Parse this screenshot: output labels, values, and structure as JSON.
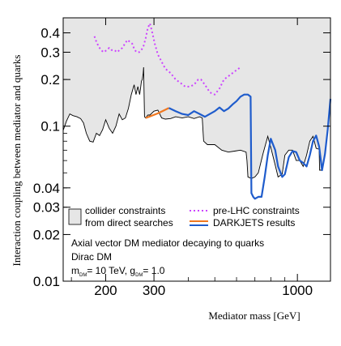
{
  "chart_data": {
    "type": "line",
    "xlabel": "Mediator mass [GeV]",
    "ylabel": "Interaction coupling between mediator and quarks",
    "xscale": "log",
    "yscale": "log",
    "xlim": [
      140,
      1320
    ],
    "ylim": [
      0.01,
      0.5
    ],
    "xticks": [
      {
        "value": 200,
        "label": "200"
      },
      {
        "value": 300,
        "label": "300"
      },
      {
        "value": 1000,
        "label": "1000"
      }
    ],
    "yticks": [
      {
        "value": 0.4,
        "label": "0.4"
      },
      {
        "value": 0.3,
        "label": "0.3"
      },
      {
        "value": 0.2,
        "label": "0.2"
      },
      {
        "value": 0.1,
        "label": "0.1"
      },
      {
        "value": 0.04,
        "label": "0.04"
      },
      {
        "value": 0.03,
        "label": "0.03"
      },
      {
        "value": 0.02,
        "label": "0.02"
      },
      {
        "value": 0.01,
        "label": "0.01"
      }
    ],
    "series": [
      {
        "name": "collider constraints from direct searches",
        "style": "filled-region",
        "color": "#000000",
        "fill": "#e6e6e6",
        "x": [
          140,
          144,
          148,
          152,
          157,
          162,
          166,
          170,
          175,
          180,
          185,
          190,
          195,
          200,
          206,
          212,
          218,
          224,
          230,
          236,
          242,
          248,
          254,
          258,
          262,
          266,
          268,
          270,
          272,
          274,
          275,
          277,
          280,
          285,
          290,
          300,
          310,
          320,
          330,
          345,
          360,
          380,
          400,
          420,
          440,
          450,
          455,
          470,
          500,
          530,
          560,
          590,
          620,
          650,
          655,
          660,
          680,
          700,
          720,
          750,
          780,
          800,
          830,
          850,
          880,
          900,
          930,
          960,
          990,
          1020,
          1050,
          1080,
          1110,
          1140,
          1170,
          1200,
          1205,
          1230,
          1260,
          1290,
          1320
        ],
        "y": [
          0.094,
          0.108,
          0.12,
          0.117,
          0.115,
          0.112,
          0.105,
          0.09,
          0.08,
          0.079,
          0.09,
          0.087,
          0.095,
          0.11,
          0.097,
          0.09,
          0.1,
          0.12,
          0.11,
          0.113,
          0.13,
          0.16,
          0.185,
          0.16,
          0.18,
          0.16,
          0.175,
          0.195,
          0.2,
          0.22,
          0.24,
          0.115,
          0.113,
          0.118,
          0.118,
          0.125,
          0.127,
          0.113,
          0.111,
          0.112,
          0.115,
          0.113,
          0.115,
          0.112,
          0.115,
          0.113,
          0.08,
          0.076,
          0.076,
          0.07,
          0.068,
          0.069,
          0.07,
          0.068,
          0.06,
          0.047,
          0.046,
          0.047,
          0.05,
          0.067,
          0.086,
          0.073,
          0.056,
          0.047,
          0.049,
          0.065,
          0.07,
          0.07,
          0.06,
          0.06,
          0.055,
          0.065,
          0.08,
          0.086,
          0.072,
          0.071,
          0.052,
          0.052,
          0.065,
          0.095,
          0.15
        ]
      },
      {
        "name": "pre-LHC constraints",
        "style": "dotted",
        "color": "#cc44ff",
        "x": [
          182,
          185,
          188,
          192,
          197,
          202,
          206,
          210,
          215,
          220,
          225,
          230,
          235,
          240,
          245,
          250,
          255,
          260,
          265,
          270,
          275,
          280,
          285,
          290,
          295,
          302,
          310,
          320,
          330,
          345,
          360,
          375,
          390,
          405,
          420,
          435,
          445,
          460,
          480,
          500,
          520,
          540,
          560,
          580,
          600,
          620
        ],
        "y": [
          0.38,
          0.35,
          0.33,
          0.31,
          0.3,
          0.31,
          0.32,
          0.31,
          0.31,
          0.3,
          0.31,
          0.32,
          0.34,
          0.36,
          0.35,
          0.34,
          0.31,
          0.3,
          0.3,
          0.31,
          0.33,
          0.37,
          0.43,
          0.46,
          0.41,
          0.34,
          0.29,
          0.26,
          0.235,
          0.22,
          0.2,
          0.19,
          0.18,
          0.18,
          0.185,
          0.2,
          0.2,
          0.185,
          0.165,
          0.16,
          0.175,
          0.2,
          0.21,
          0.22,
          0.23,
          0.24
        ]
      },
      {
        "name": "DARKJETS results",
        "style": "line",
        "color": "#f07820",
        "x": [
          280,
          295,
          310,
          325,
          340
        ],
        "y": [
          0.113,
          0.117,
          0.121,
          0.126,
          0.131
        ]
      },
      {
        "name": "DARKJETS results",
        "style": "line",
        "color": "#1f5ccc",
        "x": [
          340,
          360,
          380,
          400,
          420,
          440,
          460,
          480,
          500,
          520,
          540,
          560,
          580,
          600,
          620,
          640,
          660,
          675,
          680,
          690,
          700,
          720,
          740,
          760,
          780,
          800,
          830,
          850,
          880,
          900,
          930,
          960,
          990,
          1020,
          1050,
          1080,
          1110,
          1140,
          1170,
          1200,
          1205,
          1230,
          1260,
          1290,
          1320
        ],
        "y": [
          0.131,
          0.125,
          0.12,
          0.118,
          0.125,
          0.12,
          0.115,
          0.12,
          0.125,
          0.132,
          0.125,
          0.13,
          0.138,
          0.145,
          0.155,
          0.16,
          0.16,
          0.155,
          0.037,
          0.035,
          0.034,
          0.035,
          0.035,
          0.047,
          0.065,
          0.083,
          0.07,
          0.055,
          0.047,
          0.049,
          0.063,
          0.069,
          0.068,
          0.06,
          0.058,
          0.055,
          0.065,
          0.08,
          0.087,
          0.074,
          0.07,
          0.052,
          0.066,
          0.095,
          0.15
        ]
      }
    ],
    "legend": {
      "placement": "lower-left",
      "entries": [
        {
          "label_lines": [
            "collider constraints",
            "from direct searches"
          ],
          "marker": "box"
        },
        {
          "label_lines": [
            "pre-LHC constraints"
          ],
          "marker": "dotted-line"
        },
        {
          "label_lines": [
            "DARKJETS results"
          ],
          "marker": "two-line"
        }
      ]
    },
    "annotations": {
      "line1": "Axial vector DM mediator decaying to quarks",
      "line2": "Dirac DM",
      "mass_symbol": "m",
      "mass_sub": "DM",
      "mass_rest": "= 10 TeV, g",
      "coupling_sub": "DM",
      "coupling_rest": "= 1.0"
    },
    "grid": false,
    "colors": {
      "band_fill": "#e6e6e6",
      "pre_lhc": "#cc44ff",
      "darkjets_orange": "#f07820",
      "darkjets_blue": "#1f5ccc"
    }
  }
}
